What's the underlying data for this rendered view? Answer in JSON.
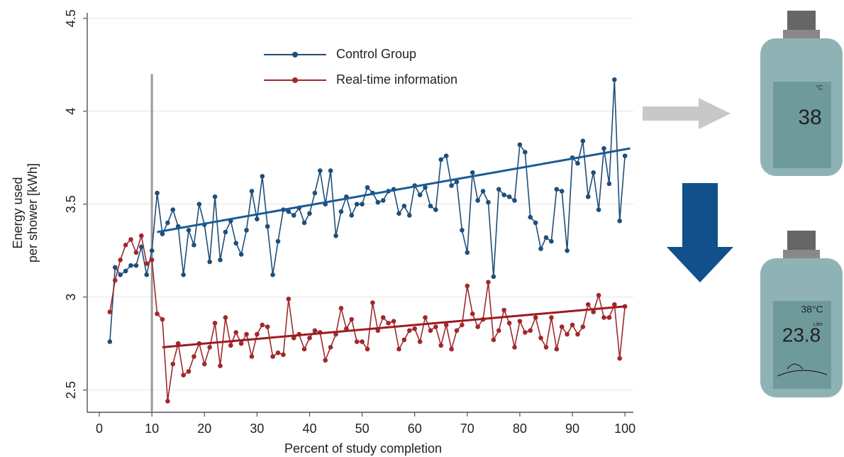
{
  "chart_data": {
    "type": "line",
    "y_label": [
      "Energy used",
      "per shower [kWh]"
    ],
    "x_label": "Percent of study completion",
    "x": [
      2,
      3,
      4,
      5,
      6,
      7,
      8,
      9,
      10,
      11,
      12,
      13,
      14,
      15,
      16,
      17,
      18,
      19,
      20,
      21,
      22,
      23,
      24,
      25,
      26,
      27,
      28,
      29,
      30,
      31,
      32,
      33,
      34,
      35,
      36,
      37,
      38,
      39,
      40,
      41,
      42,
      43,
      44,
      45,
      46,
      47,
      48,
      49,
      50,
      51,
      52,
      53,
      54,
      55,
      56,
      57,
      58,
      59,
      60,
      61,
      62,
      63,
      64,
      65,
      66,
      67,
      68,
      69,
      70,
      71,
      72,
      73,
      74,
      75,
      76,
      77,
      78,
      79,
      80,
      81,
      82,
      83,
      84,
      85,
      86,
      87,
      88,
      89,
      90,
      91,
      92,
      93,
      94,
      95,
      96,
      97,
      98,
      99,
      100
    ],
    "series": [
      {
        "name": "Control Group",
        "color": "#1f4e79",
        "trend_color": "#1a5b94",
        "values": [
          2.76,
          3.16,
          3.12,
          3.14,
          3.17,
          3.17,
          3.27,
          3.12,
          3.25,
          3.56,
          3.34,
          3.4,
          3.47,
          3.38,
          3.12,
          3.36,
          3.28,
          3.5,
          3.39,
          3.19,
          3.54,
          3.2,
          3.35,
          3.41,
          3.29,
          3.23,
          3.36,
          3.57,
          3.42,
          3.65,
          3.38,
          3.12,
          3.3,
          3.47,
          3.46,
          3.44,
          3.48,
          3.4,
          3.45,
          3.56,
          3.68,
          3.5,
          3.68,
          3.33,
          3.46,
          3.54,
          3.44,
          3.5,
          3.5,
          3.59,
          3.56,
          3.51,
          3.52,
          3.57,
          3.58,
          3.45,
          3.49,
          3.44,
          3.6,
          3.55,
          3.59,
          3.49,
          3.47,
          3.74,
          3.76,
          3.6,
          3.62,
          3.36,
          3.24,
          3.67,
          3.52,
          3.57,
          3.51,
          3.11,
          3.58,
          3.55,
          3.54,
          3.52,
          3.82,
          3.78,
          3.43,
          3.4,
          3.26,
          3.32,
          3.3,
          3.58,
          3.57,
          3.25,
          3.75,
          3.72,
          3.84,
          3.54,
          3.67,
          3.47,
          3.8,
          3.61,
          4.17,
          3.41,
          3.76
        ],
        "trend": {
          "x": [
            11,
            101
          ],
          "values": [
            3.35,
            3.8
          ]
        }
      },
      {
        "name": "Real-time information",
        "color": "#a0282d",
        "trend_color": "#9e1b1f",
        "values": [
          2.92,
          3.09,
          3.2,
          3.28,
          3.31,
          3.24,
          3.33,
          3.18,
          3.2,
          2.91,
          2.88,
          2.44,
          2.64,
          2.75,
          2.58,
          2.6,
          2.68,
          2.75,
          2.64,
          2.73,
          2.86,
          2.63,
          2.89,
          2.74,
          2.81,
          2.75,
          2.8,
          2.68,
          2.8,
          2.85,
          2.84,
          2.68,
          2.7,
          2.69,
          2.99,
          2.78,
          2.8,
          2.72,
          2.78,
          2.82,
          2.81,
          2.66,
          2.73,
          2.8,
          2.94,
          2.83,
          2.88,
          2.76,
          2.76,
          2.72,
          2.97,
          2.82,
          2.89,
          2.86,
          2.87,
          2.72,
          2.77,
          2.82,
          2.83,
          2.76,
          2.89,
          2.82,
          2.84,
          2.74,
          2.85,
          2.72,
          2.82,
          2.85,
          3.06,
          2.91,
          2.84,
          2.88,
          3.08,
          2.77,
          2.82,
          2.93,
          2.86,
          2.73,
          2.87,
          2.81,
          2.82,
          2.89,
          2.78,
          2.73,
          2.89,
          2.72,
          2.84,
          2.8,
          2.85,
          2.8,
          2.84,
          2.96,
          2.92,
          3.01,
          2.89,
          2.89,
          2.96,
          2.67,
          2.95
        ],
        "trend": {
          "x": [
            12,
            100
          ],
          "values": [
            2.73,
            2.95
          ]
        }
      }
    ],
    "marker_x": 10,
    "xlim": [
      -2.3,
      101.6
    ],
    "ylim": [
      2.38,
      4.53
    ],
    "xticks": [
      0,
      10,
      20,
      30,
      40,
      50,
      60,
      70,
      80,
      90,
      100
    ],
    "yticks": [
      2.5,
      3,
      3.5,
      4,
      4.5
    ],
    "grid": true
  },
  "devices": [
    {
      "unit": "°C",
      "reading": "38"
    },
    {
      "small": "38°C",
      "reading": "23.8",
      "unit": "Liter"
    }
  ]
}
